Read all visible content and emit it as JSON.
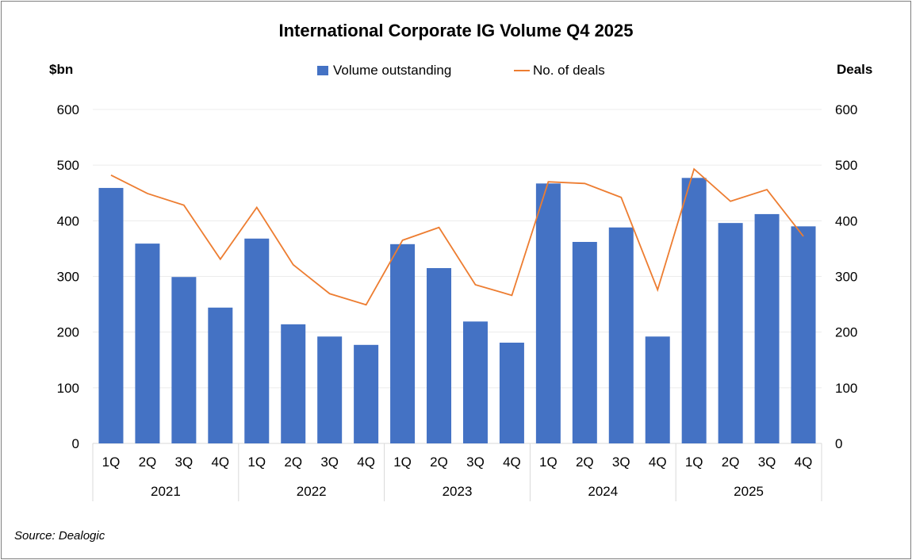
{
  "chart_data": {
    "type": "bar+line",
    "title": "International Corporate IG Volume Q4 2025",
    "ylabel_left": "$bn",
    "ylabel_right": "Deals",
    "ylim": [
      0,
      600
    ],
    "yticks": [
      0,
      100,
      200,
      300,
      400,
      500,
      600
    ],
    "grid": true,
    "legend_placement": "top",
    "years": [
      "2021",
      "2022",
      "2023",
      "2024",
      "2025"
    ],
    "quarters": [
      "1Q",
      "2Q",
      "3Q",
      "4Q"
    ],
    "series": [
      {
        "name": "Volume outstanding",
        "type": "bar",
        "color": "#4472C4",
        "values": [
          459,
          359,
          299,
          244,
          368,
          214,
          192,
          177,
          358,
          315,
          219,
          181,
          467,
          362,
          388,
          192,
          477,
          396,
          412,
          390
        ]
      },
      {
        "name": "No. of deals",
        "type": "line",
        "color": "#ED7D31",
        "values": [
          482,
          449,
          428,
          331,
          424,
          321,
          269,
          249,
          365,
          388,
          285,
          266,
          470,
          467,
          442,
          276,
          493,
          435,
          456,
          372
        ]
      }
    ]
  },
  "source": "Source: Dealogic"
}
